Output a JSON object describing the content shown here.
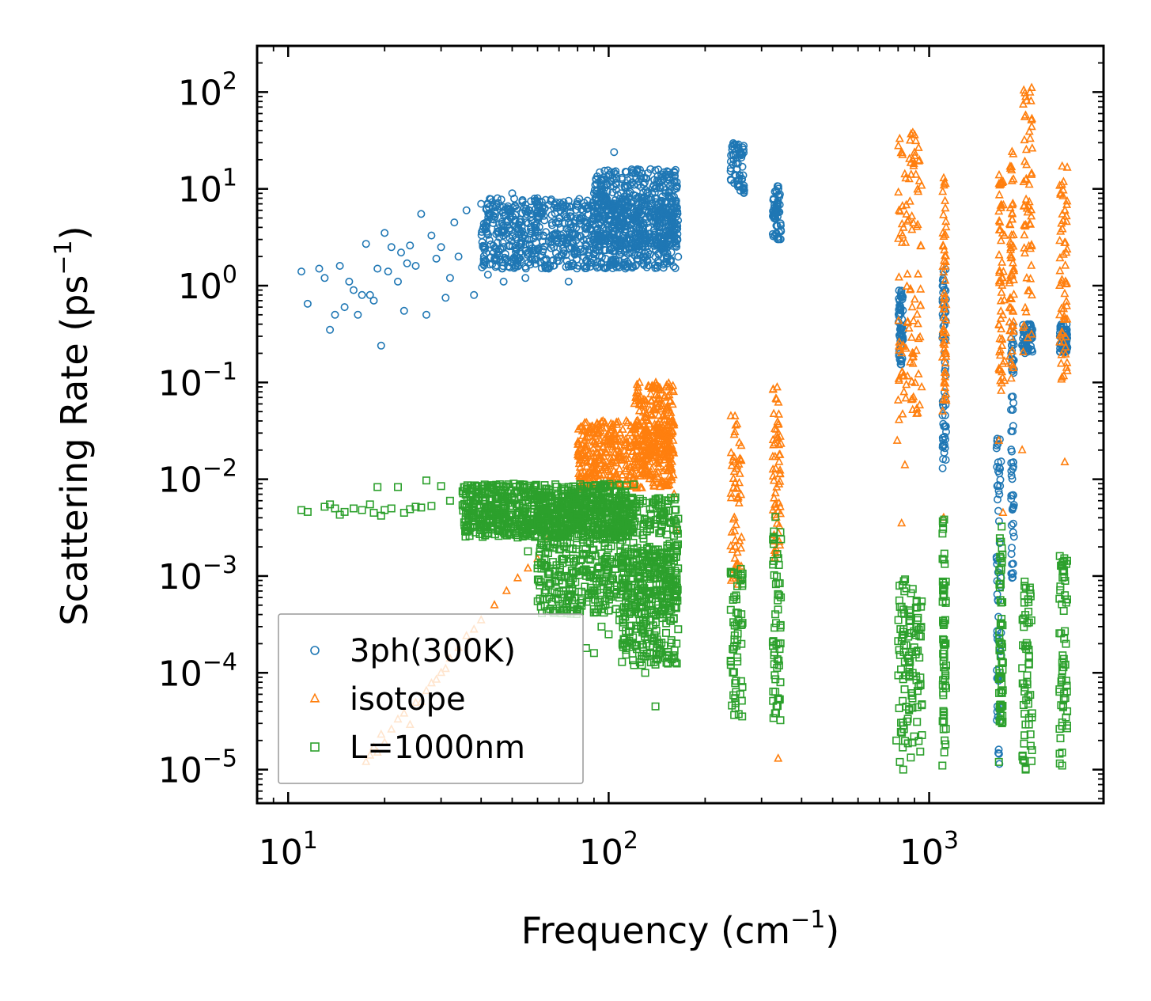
{
  "chart_data": {
    "type": "scatter",
    "xscale": "log",
    "yscale": "log",
    "xlabel": "Frequency (cm",
    "xlabel_sup": "−1",
    "xlabel_end": ")",
    "ylabel": "Scattering Rate (ps",
    "ylabel_sup": "−1",
    "ylabel_end": ")",
    "xlim": [
      8,
      3500
    ],
    "ylim": [
      4.5e-06,
      300
    ],
    "xticks": [
      {
        "value": 10,
        "base": "10",
        "exp": "1"
      },
      {
        "value": 100,
        "base": "10",
        "exp": "2"
      },
      {
        "value": 1000,
        "base": "10",
        "exp": "3"
      }
    ],
    "yticks": [
      {
        "value": 1e-05,
        "base": "10",
        "exp": "−5"
      },
      {
        "value": 0.0001,
        "base": "10",
        "exp": "−4"
      },
      {
        "value": 0.001,
        "base": "10",
        "exp": "−3"
      },
      {
        "value": 0.01,
        "base": "10",
        "exp": "−2"
      },
      {
        "value": 0.1,
        "base": "10",
        "exp": "−1"
      },
      {
        "value": 1,
        "base": "10",
        "exp": "0"
      },
      {
        "value": 10,
        "base": "10",
        "exp": "1"
      },
      {
        "value": 100,
        "base": "10",
        "exp": "2"
      }
    ],
    "legend_position": "bottom-left",
    "series": [
      {
        "name": "3ph(300K)",
        "marker": "circle",
        "color": "#1f77b4",
        "points": [
          [
            11,
            1.4
          ],
          [
            11.5,
            0.65
          ],
          [
            12.5,
            1.5
          ],
          [
            13,
            1.2
          ],
          [
            13.5,
            0.35
          ],
          [
            14,
            0.5
          ],
          [
            14.5,
            1.6
          ],
          [
            15,
            0.6
          ],
          [
            15.5,
            1.1
          ],
          [
            16,
            0.9
          ],
          [
            16.5,
            0.5
          ],
          [
            17,
            0.8
          ],
          [
            17.5,
            2.7
          ],
          [
            18,
            0.8
          ],
          [
            18.5,
            0.7
          ],
          [
            19,
            1.5
          ],
          [
            19.5,
            0.24
          ],
          [
            20,
            3.5
          ],
          [
            20.5,
            1.4
          ],
          [
            21,
            2.5
          ],
          [
            22,
            1.1
          ],
          [
            22.5,
            2.2
          ],
          [
            23,
            0.55
          ],
          [
            23.5,
            1.7
          ],
          [
            24,
            2.6
          ],
          [
            25,
            1.6
          ],
          [
            26,
            5.5
          ],
          [
            27,
            0.5
          ],
          [
            28,
            3.3
          ],
          [
            29,
            1.9
          ],
          [
            30,
            2.5
          ],
          [
            31,
            0.75
          ],
          [
            32,
            1.2
          ],
          [
            33,
            4.5
          ],
          [
            34,
            2
          ],
          [
            36,
            6
          ],
          [
            38,
            0.8
          ],
          [
            40,
            7
          ],
          [
            42,
            1.3
          ],
          [
            45,
            8
          ],
          [
            47,
            1.1
          ],
          [
            50,
            9
          ],
          [
            55,
            1.2
          ],
          [
            60,
            8
          ],
          [
            65,
            1.5
          ],
          [
            70,
            5
          ],
          [
            75,
            1.1
          ],
          [
            80,
            7
          ],
          [
            85,
            1.8
          ],
          [
            90,
            9
          ],
          [
            95,
            11
          ],
          [
            100,
            14
          ],
          [
            104,
            24
          ],
          [
            110,
            13
          ],
          [
            120,
            11
          ]
        ],
        "bands": [
          {
            "xmin": 40,
            "xmax": 165,
            "ylo": 1.5,
            "yhi": 8
          },
          {
            "xmin": 90,
            "xmax": 165,
            "ylo": 2.5,
            "yhi": 16
          },
          {
            "xmin": 240,
            "xmax": 265,
            "ylo": 9,
            "yhi": 30
          },
          {
            "xmin": 325,
            "xmax": 345,
            "ylo": 3,
            "yhi": 11
          },
          {
            "xmin": 800,
            "xmax": 830,
            "ylo": 0.15,
            "yhi": 0.9
          },
          {
            "xmin": 1100,
            "xmax": 1130,
            "ylo": 0.012,
            "yhi": 1.5
          },
          {
            "xmin": 1620,
            "xmax": 1680,
            "ylo": 1.1e-05,
            "yhi": 0.035
          },
          {
            "xmin": 1800,
            "xmax": 1840,
            "ylo": 0.0008,
            "yhi": 0.4
          },
          {
            "xmin": 1950,
            "xmax": 2100,
            "ylo": 0.2,
            "yhi": 0.4
          },
          {
            "xmin": 2550,
            "xmax": 2700,
            "ylo": 0.2,
            "yhi": 0.4
          }
        ]
      },
      {
        "name": "isotope",
        "marker": "triangle",
        "color": "#ff7f0e",
        "points": [
          [
            17.5,
            1.2e-05
          ],
          [
            18,
            1.4e-05
          ],
          [
            18.5,
            1.7e-05
          ],
          [
            19,
            1.5e-05
          ],
          [
            19.5,
            2.3e-05
          ],
          [
            20,
            1.9e-05
          ],
          [
            21,
            2.6e-05
          ],
          [
            22,
            3.3e-05
          ],
          [
            23,
            3.8e-05
          ],
          [
            24,
            2.9e-05
          ],
          [
            25,
            4.9e-05
          ],
          [
            26,
            5e-05
          ],
          [
            27,
            6.5e-05
          ],
          [
            28,
            7.8e-05
          ],
          [
            29,
            8.5e-05
          ],
          [
            30,
            0.0001
          ],
          [
            31,
            0.00011
          ],
          [
            32,
            0.00014
          ],
          [
            34,
            0.00018
          ],
          [
            36,
            0.00024
          ],
          [
            38,
            0.00028
          ],
          [
            40,
            0.00035
          ],
          [
            44,
            0.0005
          ],
          [
            48,
            0.0007
          ],
          [
            52,
            0.00095
          ],
          [
            56,
            0.0012
          ],
          [
            60,
            0.0015
          ],
          [
            65,
            0.0025
          ],
          [
            70,
            0.0035
          ],
          [
            75,
            0.0045
          ],
          [
            85,
            0.011
          ],
          [
            90,
            0.015
          ],
          [
            160,
            0.007
          ],
          [
            162,
            0.003
          ],
          [
            338,
            1.3e-05
          ],
          [
            795,
            0.025
          ],
          [
            820,
            0.0035
          ],
          [
            840,
            0.014
          ],
          [
            1110,
            0.004
          ],
          [
            1650,
            0.025
          ],
          [
            1700,
            0.0045
          ],
          [
            1950,
            0.02
          ],
          [
            2650,
            0.015
          ]
        ],
        "bands": [
          {
            "xmin": 80,
            "xmax": 160,
            "ylo": 0.008,
            "yhi": 0.04
          },
          {
            "xmin": 120,
            "xmax": 160,
            "ylo": 0.015,
            "yhi": 0.1
          },
          {
            "xmin": 240,
            "xmax": 260,
            "ylo": 0.0008,
            "yhi": 0.045
          },
          {
            "xmin": 325,
            "xmax": 345,
            "ylo": 0.0015,
            "yhi": 0.09
          },
          {
            "xmin": 800,
            "xmax": 950,
            "ylo": 0.04,
            "yhi": 40
          },
          {
            "xmin": 1100,
            "xmax": 1130,
            "ylo": 0.05,
            "yhi": 13
          },
          {
            "xmin": 1650,
            "xmax": 1720,
            "ylo": 0.08,
            "yhi": 14
          },
          {
            "xmin": 1780,
            "xmax": 1840,
            "ylo": 0.1,
            "yhi": 25
          },
          {
            "xmin": 1950,
            "xmax": 2100,
            "ylo": 0.2,
            "yhi": 120
          },
          {
            "xmin": 2550,
            "xmax": 2700,
            "ylo": 0.1,
            "yhi": 18
          }
        ]
      },
      {
        "name": "L=1000nm",
        "marker": "square",
        "color": "#2ca02c",
        "points": [
          [
            11,
            0.0048
          ],
          [
            11.5,
            0.0046
          ],
          [
            13,
            0.0052
          ],
          [
            13.5,
            0.0055
          ],
          [
            14,
            0.005
          ],
          [
            14.5,
            0.0043
          ],
          [
            15,
            0.0046
          ],
          [
            16,
            0.005
          ],
          [
            17,
            0.0048
          ],
          [
            18,
            0.0055
          ],
          [
            18.5,
            0.0045
          ],
          [
            19,
            0.0083
          ],
          [
            19.5,
            0.0042
          ],
          [
            20,
            0.0048
          ],
          [
            21,
            0.005
          ],
          [
            22,
            0.0083
          ],
          [
            23,
            0.0045
          ],
          [
            24,
            0.0049
          ],
          [
            25,
            0.0052
          ],
          [
            26,
            0.0051
          ],
          [
            27,
            0.0097
          ],
          [
            28,
            0.0053
          ],
          [
            30,
            0.0085
          ],
          [
            32,
            0.006
          ],
          [
            35,
            0.0075
          ],
          [
            38,
            0.0055
          ],
          [
            42,
            0.0052
          ],
          [
            48,
            0.004
          ],
          [
            52,
            0.0025
          ],
          [
            56,
            0.0018
          ],
          [
            60,
            0.0012
          ],
          [
            65,
            0.0008
          ],
          [
            70,
            0.0009
          ],
          [
            75,
            0.0006
          ],
          [
            80,
            0.00045
          ],
          [
            85,
            0.00018
          ],
          [
            90,
            0.00016
          ],
          [
            95,
            0.0003
          ],
          [
            100,
            0.00025
          ],
          [
            108,
            0.00035
          ],
          [
            120,
            0.00012
          ],
          [
            130,
            0.0001
          ],
          [
            140,
            4.5e-05
          ],
          [
            790,
            2e-05
          ],
          [
            810,
            1.2e-05
          ],
          [
            830,
            1e-05
          ],
          [
            1100,
            1.1e-05
          ],
          [
            1650,
            1.2e-05
          ],
          [
            2000,
            1e-05
          ],
          [
            2600,
            1.1e-05
          ]
        ],
        "bands": [
          {
            "xmin": 35,
            "xmax": 120,
            "ylo": 0.0025,
            "yhi": 0.009
          },
          {
            "xmin": 60,
            "xmax": 165,
            "ylo": 0.0004,
            "yhi": 0.0065
          },
          {
            "xmin": 110,
            "xmax": 165,
            "ylo": 0.00012,
            "yhi": 0.002
          },
          {
            "xmin": 240,
            "xmax": 262,
            "ylo": 3.5e-05,
            "yhi": 0.0015
          },
          {
            "xmin": 325,
            "xmax": 345,
            "ylo": 3e-05,
            "yhi": 0.005
          },
          {
            "xmin": 800,
            "xmax": 950,
            "ylo": 1.1e-05,
            "yhi": 0.001
          },
          {
            "xmin": 1100,
            "xmax": 1130,
            "ylo": 1.2e-05,
            "yhi": 0.004
          },
          {
            "xmin": 1650,
            "xmax": 1700,
            "ylo": 3e-05,
            "yhi": 0.004
          },
          {
            "xmin": 1950,
            "xmax": 2100,
            "ylo": 1e-05,
            "yhi": 0.0009
          },
          {
            "xmin": 2550,
            "xmax": 2700,
            "ylo": 1e-05,
            "yhi": 0.002
          }
        ]
      }
    ]
  }
}
